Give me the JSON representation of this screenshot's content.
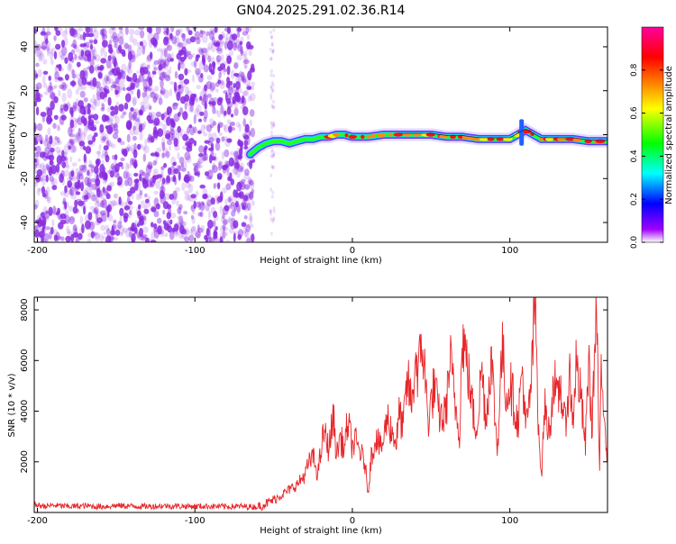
{
  "title": "GN04.2025.291.02.36.R14",
  "chart_data": [
    {
      "type": "heatmap",
      "title": "GN04.2025.291.02.36.R14",
      "xlabel": "Height of straight line (km)",
      "ylabel": "Frequency (Hz)",
      "xlim": [
        -202,
        162
      ],
      "ylim": [
        -49,
        49
      ],
      "x_ticks": [
        -200,
        -100,
        0,
        100
      ],
      "x_tick_labels": [
        "-200",
        "-100",
        "0",
        "100"
      ],
      "y_ticks": [
        -40,
        -20,
        0,
        20,
        40
      ],
      "y_tick_labels": [
        "-40",
        "-20",
        "0",
        "20",
        "40"
      ],
      "noise_region_km": [
        -202,
        -63
      ],
      "signal_start_km": -65,
      "signal_track": {
        "x": [
          -65,
          -60,
          -55,
          -50,
          -45,
          -40,
          -35,
          -30,
          -25,
          -20,
          -15,
          -10,
          -5,
          0,
          10,
          20,
          30,
          40,
          50,
          60,
          70,
          80,
          90,
          100,
          105,
          110,
          120,
          130,
          140,
          150,
          160
        ],
        "y": [
          -9,
          -6,
          -4,
          -3,
          -3,
          -4,
          -3,
          -2,
          -2,
          -1,
          -1,
          0,
          0,
          -1,
          -1,
          0,
          0,
          0,
          0,
          -1,
          -1,
          -2,
          -2,
          -2,
          0,
          2,
          -2,
          -2,
          -2,
          -3,
          -3
        ]
      },
      "colorbar": {
        "label": "Normalized spectral amplitude",
        "range": [
          0,
          1
        ],
        "ticks": [
          0,
          0.2,
          0.4,
          0.6,
          0.8
        ],
        "tick_labels": [
          "0.0",
          "0.2",
          "0.4",
          "0.6",
          "0.8"
        ],
        "colors": [
          "#ffffff",
          "#a000ff",
          "#0000ff",
          "#00ffff",
          "#00ff00",
          "#ffff00",
          "#ff8000",
          "#ff0000",
          "#ff00a0"
        ]
      },
      "noise_color": "#8a2be2"
    },
    {
      "type": "line",
      "xlabel": "Height of straight line (km)",
      "ylabel": "SNR (10 * v/v)",
      "xlim": [
        -202,
        162
      ],
      "ylim": [
        0,
        8500
      ],
      "x_ticks": [
        -200,
        -100,
        0,
        100
      ],
      "x_tick_labels": [
        "-200",
        "-100",
        "0",
        "100"
      ],
      "y_ticks": [
        2000,
        4000,
        6000,
        8000
      ],
      "y_tick_labels": [
        "2000",
        "4000",
        "6000",
        "8000"
      ],
      "color": "#e8262a",
      "series": [
        {
          "name": "SNR",
          "x": [
            -202,
            -195,
            -190,
            -180,
            -170,
            -160,
            -150,
            -140,
            -130,
            -120,
            -110,
            -100,
            -90,
            -80,
            -70,
            -60,
            -55,
            -50,
            -45,
            -40,
            -35,
            -30,
            -28,
            -25,
            -22,
            -20,
            -18,
            -15,
            -12,
            -10,
            -8,
            -5,
            -3,
            0,
            2,
            5,
            8,
            10,
            12,
            15,
            18,
            20,
            22,
            25,
            28,
            30,
            32,
            35,
            38,
            40,
            42,
            44,
            46,
            48,
            50,
            52,
            55,
            58,
            60,
            62,
            65,
            68,
            70,
            72,
            75,
            78,
            80,
            82,
            85,
            88,
            90,
            92,
            95,
            98,
            100,
            102,
            105,
            108,
            110,
            112,
            114,
            116,
            118,
            120,
            122,
            125,
            128,
            130,
            132,
            135,
            138,
            140,
            142,
            145,
            148,
            150,
            152,
            155,
            157,
            158,
            160,
            162
          ],
          "y": [
            300,
            250,
            280,
            240,
            260,
            230,
            270,
            250,
            240,
            260,
            250,
            240,
            250,
            230,
            240,
            220,
            350,
            500,
            700,
            900,
            1100,
            1500,
            1900,
            2200,
            1500,
            2400,
            3200,
            2500,
            3800,
            2200,
            3000,
            2500,
            3600,
            2600,
            2800,
            2400,
            1900,
            800,
            2200,
            3000,
            2500,
            2900,
            3800,
            3200,
            2800,
            4000,
            3300,
            5200,
            4200,
            6200,
            5400,
            6800,
            5600,
            3600,
            4300,
            5000,
            3900,
            3700,
            4400,
            6100,
            4400,
            3200,
            7000,
            6200,
            4800,
            3300,
            3900,
            5800,
            3600,
            6200,
            4400,
            2400,
            6500,
            4500,
            5200,
            4500,
            3500,
            5700,
            3300,
            4000,
            5600,
            8500,
            3900,
            1300,
            4200,
            3100,
            5400,
            4200,
            5100,
            3400,
            5400,
            3600,
            5900,
            4600,
            2600,
            6200,
            3300,
            8000,
            1600,
            5200,
            4200,
            2000
          ]
        }
      ]
    }
  ]
}
